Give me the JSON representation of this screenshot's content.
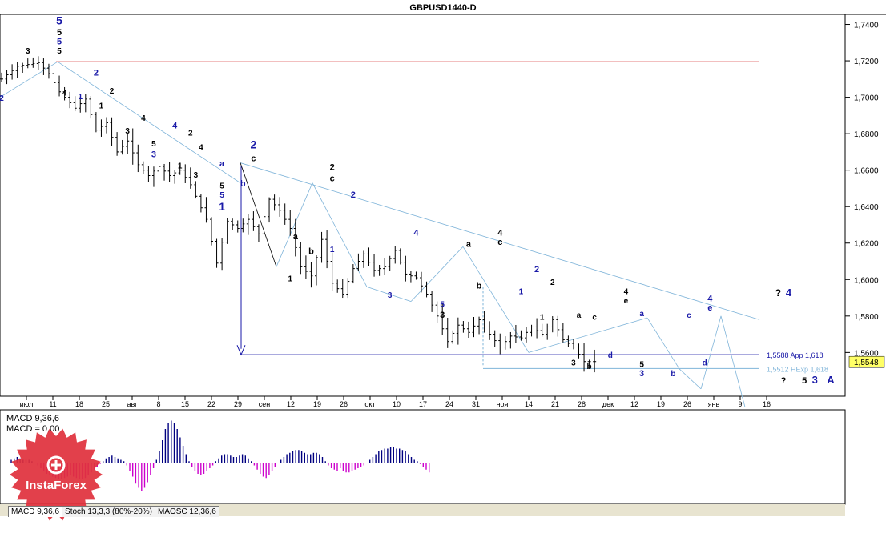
{
  "title": "GBPUSD1440-D",
  "colors": {
    "black": "#000000",
    "blue": "#1a1aa8",
    "red": "#cc0000",
    "lightblue": "#7fb4d9",
    "magenta": "#cc00cc",
    "navy": "#000080",
    "price_tag": "#ffff66",
    "logo": "#e0303c"
  },
  "indicator": {
    "line1": "MACD 9,36,6",
    "line2": "MACD = 0,00"
  },
  "tabs": [
    {
      "label": "MACD 9,36,6",
      "active": true
    },
    {
      "label": "Stoch 13,3,3 (80%-20%)",
      "active": false
    },
    {
      "label": "MAOSC 12,36,6",
      "active": false
    }
  ],
  "logo_text": "InstaForex",
  "chart_data": {
    "type": "line",
    "title": "GBPUSD1440-D",
    "ylim": [
      1.536,
      1.7455
    ],
    "y_ticks": [
      "1,7400",
      "1,7200",
      "1,7000",
      "1,6800",
      "1,6600",
      "1,6400",
      "1,6200",
      "1,6000",
      "1,5800",
      "1,5600"
    ],
    "x_ticks": [
      "июл",
      "11",
      "18",
      "25",
      "авг",
      "8",
      "15",
      "22",
      "29",
      "сен",
      "12",
      "19",
      "26",
      "окт",
      "10",
      "17",
      "24",
      "31",
      "ноя",
      "14",
      "21",
      "28",
      "дек",
      "12",
      "19",
      "26",
      "янв",
      "9",
      "16"
    ],
    "current_price": "1,5548",
    "price_path": [
      [
        0,
        1.71
      ],
      [
        3,
        1.717
      ],
      [
        7,
        1.719
      ],
      [
        9,
        1.713
      ],
      [
        11,
        1.703
      ],
      [
        14,
        1.694
      ],
      [
        16,
        1.699
      ],
      [
        18,
        1.682
      ],
      [
        20,
        1.686
      ],
      [
        22,
        1.67
      ],
      [
        24,
        1.676
      ],
      [
        26,
        1.663
      ],
      [
        28,
        1.657
      ],
      [
        30,
        1.662
      ],
      [
        32,
        1.657
      ],
      [
        34,
        1.66
      ],
      [
        36,
        1.652
      ],
      [
        39,
        1.633
      ],
      [
        41,
        1.609
      ],
      [
        43,
        1.632
      ],
      [
        45,
        1.628
      ],
      [
        47,
        1.633
      ],
      [
        49,
        1.625
      ],
      [
        51,
        1.644
      ],
      [
        53,
        1.638
      ],
      [
        55,
        1.628
      ],
      [
        57,
        1.607
      ],
      [
        59,
        1.602
      ],
      [
        61,
        1.622
      ],
      [
        63,
        1.598
      ],
      [
        65,
        1.592
      ],
      [
        67,
        1.606
      ],
      [
        69,
        1.614
      ],
      [
        71,
        1.605
      ],
      [
        73,
        1.607
      ],
      [
        75,
        1.616
      ],
      [
        77,
        1.603
      ],
      [
        79,
        1.601
      ],
      [
        81,
        1.592
      ],
      [
        83,
        1.58
      ],
      [
        85,
        1.566
      ],
      [
        87,
        1.575
      ],
      [
        89,
        1.571
      ],
      [
        91,
        1.578
      ],
      [
        93,
        1.57
      ],
      [
        95,
        1.563
      ],
      [
        97,
        1.569
      ],
      [
        99,
        1.568
      ],
      [
        101,
        1.574
      ],
      [
        103,
        1.57
      ],
      [
        105,
        1.578
      ],
      [
        107,
        1.567
      ],
      [
        109,
        1.563
      ],
      [
        111,
        1.555
      ],
      [
        113,
        1.555
      ]
    ],
    "horizontal_lines": [
      {
        "y": 1.7195,
        "color": "#cc0000"
      },
      {
        "y": 1.5588,
        "color": "#1a1aa8",
        "label": "1,5588 App 1,618"
      },
      {
        "y": 1.5512,
        "color": "#7fb4d9",
        "label": "1,5512 НExp 1,618"
      }
    ],
    "wave_labels": [
      {
        "text": "5",
        "t": 11,
        "y": 1.74,
        "color": "#1a1aa8",
        "size": 14
      },
      {
        "text": "5",
        "t": 11,
        "y": 1.734,
        "color": "#000000",
        "size": 11
      },
      {
        "text": "5",
        "t": 11,
        "y": 1.729,
        "color": "#1a1aa8",
        "size": 11
      },
      {
        "text": "5",
        "t": 11,
        "y": 1.724,
        "color": "#000000",
        "size": 10
      },
      {
        "text": "3",
        "t": 5,
        "y": 1.724,
        "color": "#000000",
        "size": 10
      },
      {
        "text": "2",
        "t": 0,
        "y": 1.698,
        "color": "#1a1aa8",
        "size": 10
      },
      {
        "text": "4",
        "t": 12,
        "y": 1.701,
        "color": "#000000",
        "size": 10
      },
      {
        "text": "1",
        "t": 15,
        "y": 1.699,
        "color": "#1a1aa8",
        "size": 10
      },
      {
        "text": "2",
        "t": 18,
        "y": 1.712,
        "color": "#1a1aa8",
        "size": 11
      },
      {
        "text": "2",
        "t": 21,
        "y": 1.702,
        "color": "#000000",
        "size": 10
      },
      {
        "text": "1",
        "t": 19,
        "y": 1.694,
        "color": "#000000",
        "size": 10
      },
      {
        "text": "4",
        "t": 27,
        "y": 1.687,
        "color": "#000000",
        "size": 10
      },
      {
        "text": "3",
        "t": 24,
        "y": 1.68,
        "color": "#000000",
        "size": 10
      },
      {
        "text": "4",
        "t": 33,
        "y": 1.683,
        "color": "#1a1aa8",
        "size": 11
      },
      {
        "text": "5",
        "t": 29,
        "y": 1.673,
        "color": "#000000",
        "size": 10
      },
      {
        "text": "3",
        "t": 29,
        "y": 1.667,
        "color": "#1a1aa8",
        "size": 11
      },
      {
        "text": "2",
        "t": 36,
        "y": 1.679,
        "color": "#000000",
        "size": 10
      },
      {
        "text": "4",
        "t": 38,
        "y": 1.671,
        "color": "#000000",
        "size": 10
      },
      {
        "text": "1",
        "t": 34,
        "y": 1.661,
        "color": "#000000",
        "size": 10
      },
      {
        "text": "3",
        "t": 37,
        "y": 1.656,
        "color": "#000000",
        "size": 10
      },
      {
        "text": "a",
        "t": 42,
        "y": 1.662,
        "color": "#1a1aa8",
        "size": 11
      },
      {
        "text": "5",
        "t": 42,
        "y": 1.65,
        "color": "#000000",
        "size": 10
      },
      {
        "text": "5",
        "t": 42,
        "y": 1.645,
        "color": "#1a1aa8",
        "size": 10
      },
      {
        "text": "1",
        "t": 42,
        "y": 1.638,
        "color": "#1a1aa8",
        "size": 14
      },
      {
        "text": "2",
        "t": 48,
        "y": 1.672,
        "color": "#1a1aa8",
        "size": 14
      },
      {
        "text": "c",
        "t": 48,
        "y": 1.665,
        "color": "#000000",
        "size": 11
      },
      {
        "text": "b",
        "t": 46,
        "y": 1.651,
        "color": "#1a1aa8",
        "size": 11
      },
      {
        "text": "a",
        "t": 56,
        "y": 1.622,
        "color": "#000000",
        "size": 11
      },
      {
        "text": "b",
        "t": 59,
        "y": 1.614,
        "color": "#000000",
        "size": 11
      },
      {
        "text": "1",
        "t": 55,
        "y": 1.599,
        "color": "#000000",
        "size": 10
      },
      {
        "text": "2",
        "t": 63,
        "y": 1.66,
        "color": "#000000",
        "size": 11
      },
      {
        "text": "c",
        "t": 63,
        "y": 1.654,
        "color": "#000000",
        "size": 11
      },
      {
        "text": "1",
        "t": 63,
        "y": 1.615,
        "color": "#1a1aa8",
        "size": 10
      },
      {
        "text": "2",
        "t": 67,
        "y": 1.645,
        "color": "#1a1aa8",
        "size": 11
      },
      {
        "text": "3",
        "t": 74,
        "y": 1.59,
        "color": "#1a1aa8",
        "size": 10
      },
      {
        "text": "4",
        "t": 79,
        "y": 1.624,
        "color": "#1a1aa8",
        "size": 11
      },
      {
        "text": "5",
        "t": 84,
        "y": 1.585,
        "color": "#1a1aa8",
        "size": 10
      },
      {
        "text": "3",
        "t": 84,
        "y": 1.579,
        "color": "#000000",
        "size": 11
      },
      {
        "text": "a",
        "t": 89,
        "y": 1.618,
        "color": "#000000",
        "size": 11
      },
      {
        "text": "b",
        "t": 91,
        "y": 1.595,
        "color": "#000000",
        "size": 11
      },
      {
        "text": "4",
        "t": 95,
        "y": 1.624,
        "color": "#000000",
        "size": 11
      },
      {
        "text": "c",
        "t": 95,
        "y": 1.619,
        "color": "#000000",
        "size": 11
      },
      {
        "text": "2",
        "t": 102,
        "y": 1.604,
        "color": "#1a1aa8",
        "size": 11
      },
      {
        "text": "1",
        "t": 99,
        "y": 1.592,
        "color": "#1a1aa8",
        "size": 10
      },
      {
        "text": "2",
        "t": 105,
        "y": 1.597,
        "color": "#000000",
        "size": 10
      },
      {
        "text": "1",
        "t": 103,
        "y": 1.578,
        "color": "#000000",
        "size": 10
      },
      {
        "text": "a",
        "t": 110,
        "y": 1.579,
        "color": "#000000",
        "size": 10
      },
      {
        "text": "c",
        "t": 113,
        "y": 1.578,
        "color": "#000000",
        "size": 10
      },
      {
        "text": "3",
        "t": 109,
        "y": 1.553,
        "color": "#000000",
        "size": 10
      },
      {
        "text": "b",
        "t": 112,
        "y": 1.551,
        "color": "#000000",
        "size": 10
      },
      {
        "text": "4",
        "t": 119,
        "y": 1.592,
        "color": "#000000",
        "size": 10
      },
      {
        "text": "e",
        "t": 119,
        "y": 1.587,
        "color": "#000000",
        "size": 10
      },
      {
        "text": "d",
        "t": 116,
        "y": 1.557,
        "color": "#1a1aa8",
        "size": 10
      },
      {
        "text": "a",
        "t": 122,
        "y": 1.58,
        "color": "#1a1aa8",
        "size": 10
      },
      {
        "text": "5",
        "t": 122,
        "y": 1.552,
        "color": "#000000",
        "size": 10
      },
      {
        "text": "3",
        "t": 122,
        "y": 1.547,
        "color": "#1a1aa8",
        "size": 11
      },
      {
        "text": "b",
        "t": 128,
        "y": 1.547,
        "color": "#1a1aa8",
        "size": 10
      },
      {
        "text": "c",
        "t": 131,
        "y": 1.579,
        "color": "#1a1aa8",
        "size": 10
      },
      {
        "text": "4",
        "t": 135,
        "y": 1.588,
        "color": "#1a1aa8",
        "size": 11
      },
      {
        "text": "e",
        "t": 135,
        "y": 1.583,
        "color": "#1a1aa8",
        "size": 11
      },
      {
        "text": "d",
        "t": 134,
        "y": 1.553,
        "color": "#1a1aa8",
        "size": 10
      },
      {
        "text": "?",
        "t": 148,
        "y": 1.591,
        "color": "#000000",
        "size": 12
      },
      {
        "text": "4",
        "t": 150,
        "y": 1.591,
        "color": "#1a1aa8",
        "size": 13
      },
      {
        "text": "?",
        "t": 149,
        "y": 1.543,
        "color": "#000000",
        "size": 11
      },
      {
        "text": "5",
        "t": 153,
        "y": 1.543,
        "color": "#000000",
        "size": 11
      },
      {
        "text": "3",
        "t": 155,
        "y": 1.543,
        "color": "#1a1aa8",
        "size": 13
      },
      {
        "text": "A",
        "t": 158,
        "y": 1.543,
        "color": "#1a1aa8",
        "size": 13
      }
    ],
    "macd_hist": [
      2,
      3,
      4,
      3,
      2,
      2,
      2,
      1,
      0,
      -2,
      -4,
      -6,
      -8,
      -9,
      -10,
      -11,
      -12,
      -12,
      -11,
      -10,
      -9,
      -10,
      -11,
      -12,
      -12,
      -11,
      -9,
      -7,
      -5,
      -3,
      -1,
      1,
      3,
      4,
      5,
      4,
      3,
      2,
      1,
      -2,
      -6,
      -10,
      -15,
      -18,
      -20,
      -18,
      -14,
      -9,
      -4,
      2,
      8,
      16,
      24,
      28,
      30,
      28,
      24,
      18,
      12,
      6,
      1,
      -3,
      -6,
      -8,
      -9,
      -8,
      -6,
      -4,
      -2,
      1,
      3,
      5,
      6,
      6,
      5,
      4,
      4,
      5,
      6,
      5,
      3,
      1,
      -2,
      -5,
      -8,
      -10,
      -11,
      -9,
      -6,
      -3,
      0,
      2,
      4,
      6,
      7,
      8,
      9,
      9,
      8,
      7,
      6,
      6,
      7,
      7,
      6,
      4,
      1,
      -2,
      -4,
      -5,
      -6
    ],
    "macd_hist_2": [
      -4,
      -6,
      -7,
      -7,
      -6,
      -5,
      -4,
      -3,
      -2,
      0,
      2,
      4,
      6,
      8,
      9,
      10,
      10,
      11,
      11,
      10,
      10,
      9,
      8,
      6,
      4,
      2,
      1,
      -1,
      -3,
      -5,
      -7
    ]
  }
}
